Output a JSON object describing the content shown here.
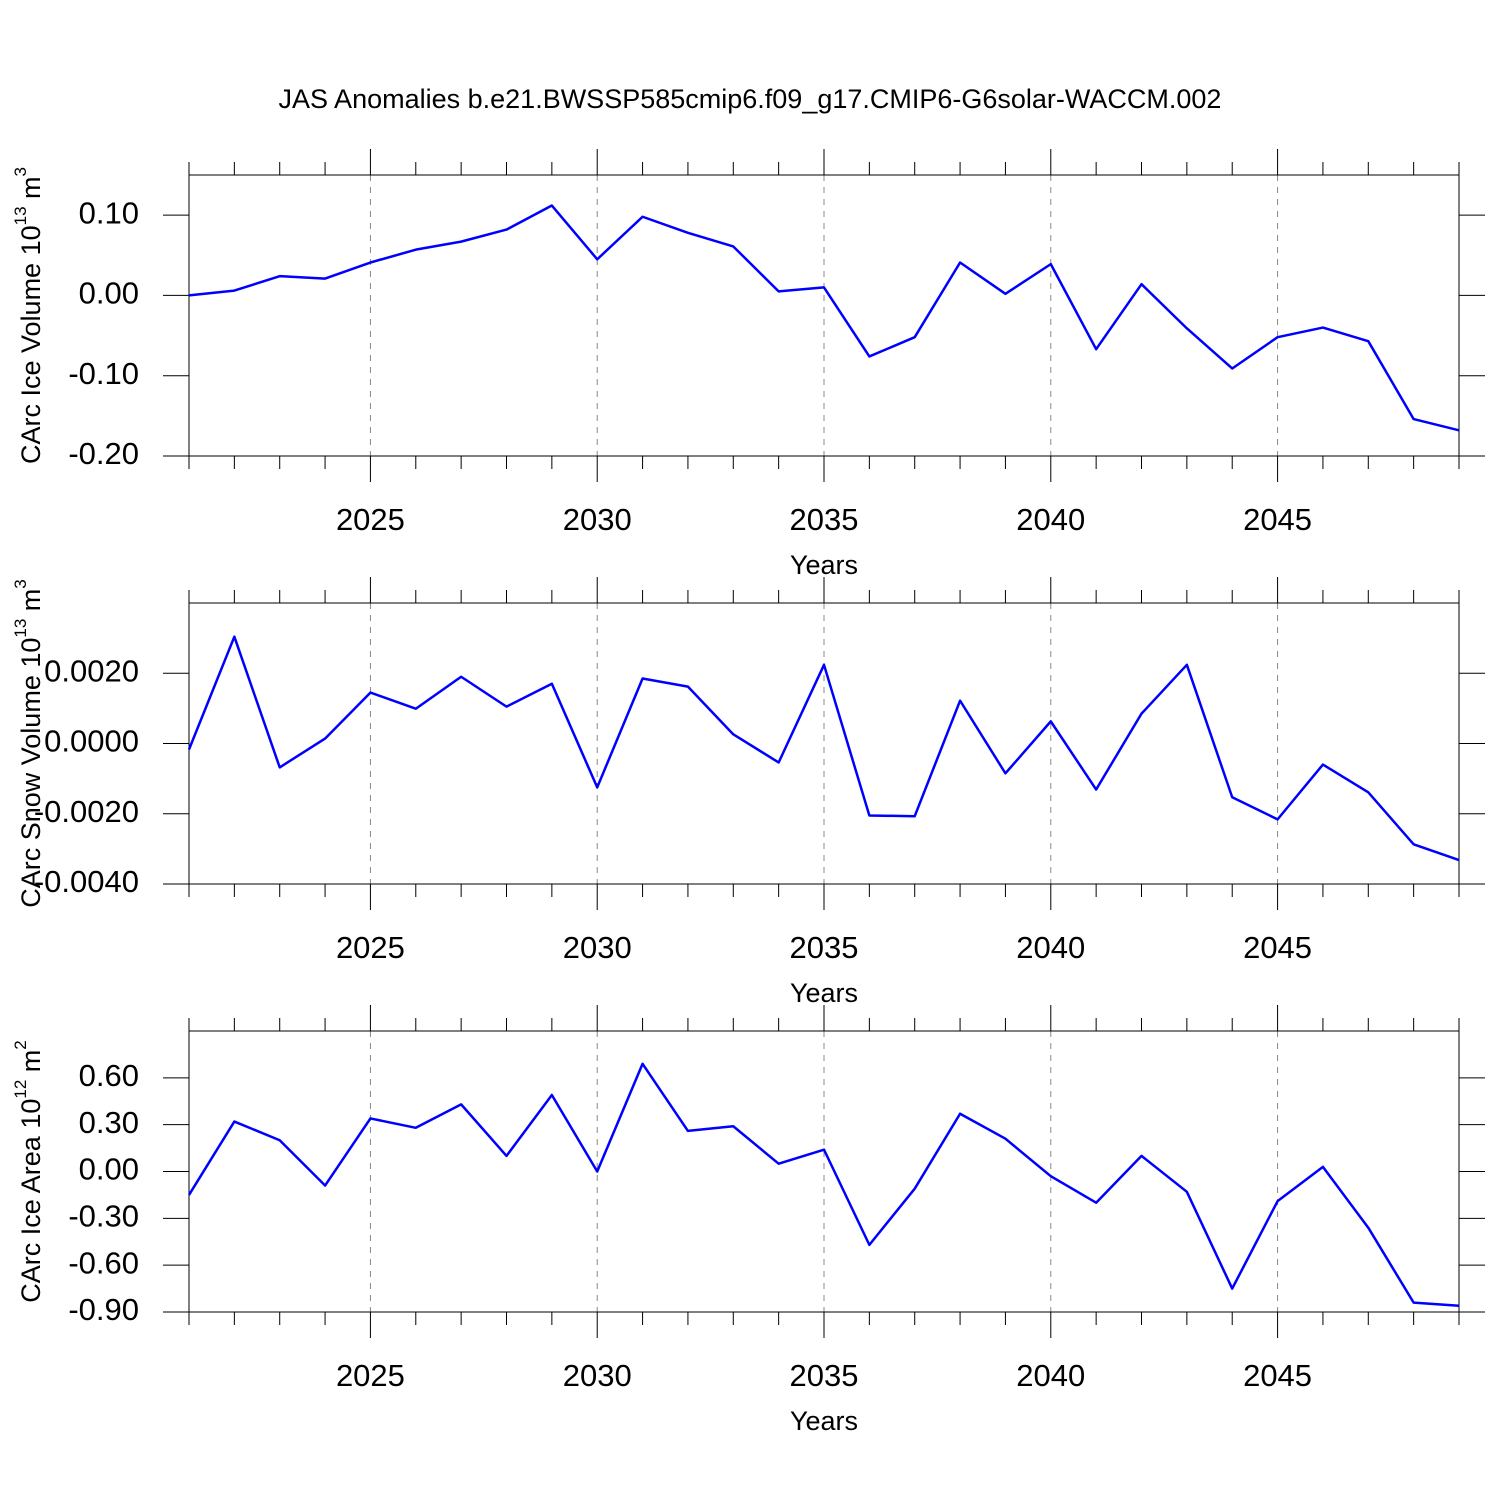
{
  "title": "JAS Anomalies b.e21.BWSSP585cmip6.f09_g17.CMIP6-G6solar-WACCM.002",
  "chart_data": [
    {
      "type": "line",
      "ylabel": [
        "CArc Ice Volume 10",
        "13",
        " m",
        "3"
      ],
      "xlabel": "Years",
      "x": [
        2021,
        2022,
        2023,
        2024,
        2025,
        2026,
        2027,
        2028,
        2029,
        2030,
        2031,
        2032,
        2033,
        2034,
        2035,
        2036,
        2037,
        2038,
        2039,
        2040,
        2041,
        2042,
        2043,
        2044,
        2045,
        2046,
        2047,
        2048,
        2049
      ],
      "series": [
        {
          "color": "#0000ff",
          "values": [
            0.0,
            0.006,
            0.024,
            0.021,
            0.041,
            0.057,
            0.067,
            0.082,
            0.112,
            0.045,
            0.098,
            0.078,
            0.061,
            0.005,
            0.01,
            -0.076,
            -0.052,
            0.041,
            0.002,
            0.039,
            -0.067,
            0.014,
            -0.041,
            -0.091,
            -0.052,
            -0.04,
            -0.057,
            -0.154,
            -0.168
          ]
        }
      ],
      "xlim": [
        2021,
        2049
      ],
      "xticks": [
        2025,
        2030,
        2035,
        2040,
        2045
      ],
      "xminorticks": [
        2021,
        2022,
        2023,
        2024,
        2026,
        2027,
        2028,
        2029,
        2031,
        2032,
        2033,
        2034,
        2036,
        2037,
        2038,
        2039,
        2041,
        2042,
        2043,
        2044,
        2046,
        2047,
        2048,
        2049
      ],
      "ylim": [
        -0.2,
        0.15
      ],
      "yticks": [
        {
          "value": 0.1,
          "label": "0.10"
        },
        {
          "value": 0,
          "label": "0.00"
        },
        {
          "value": -0.1,
          "label": "-0.10"
        },
        {
          "value": -0.2,
          "label": "-0.20"
        }
      ],
      "grid": true
    },
    {
      "type": "line",
      "ylabel": [
        "CArc Snow Volume 10",
        "13",
        " m",
        "3"
      ],
      "xlabel": "Years",
      "x": [
        2021,
        2022,
        2023,
        2024,
        2025,
        2026,
        2027,
        2028,
        2029,
        2030,
        2031,
        2032,
        2033,
        2034,
        2035,
        2036,
        2037,
        2038,
        2039,
        2040,
        2041,
        2042,
        2043,
        2044,
        2045,
        2046,
        2047,
        2048,
        2049
      ],
      "series": [
        {
          "color": "#0000ff",
          "values": [
            -0.00017,
            0.00304,
            -0.00068,
            0.00014,
            0.00145,
            0.00099,
            0.0019,
            0.00105,
            0.0017,
            -0.00125,
            0.00185,
            0.00162,
            0.00026,
            -0.00054,
            0.00224,
            -0.00205,
            -0.00207,
            0.00122,
            -0.00085,
            0.00063,
            -0.00131,
            0.00085,
            0.00224,
            -0.00153,
            -0.00216,
            -0.0006,
            -0.00139,
            -0.00287,
            -0.00332
          ]
        }
      ],
      "xlim": [
        2021,
        2049
      ],
      "xticks": [
        2025,
        2030,
        2035,
        2040,
        2045
      ],
      "xminorticks": [
        2021,
        2022,
        2023,
        2024,
        2026,
        2027,
        2028,
        2029,
        2031,
        2032,
        2033,
        2034,
        2036,
        2037,
        2038,
        2039,
        2041,
        2042,
        2043,
        2044,
        2046,
        2047,
        2048,
        2049
      ],
      "ylim": [
        -0.004,
        0.004
      ],
      "yticks": [
        {
          "value": 0.002,
          "label": "0.0020"
        },
        {
          "value": 0,
          "label": "0.0000"
        },
        {
          "value": -0.002,
          "label": "-0.0020"
        },
        {
          "value": -0.004,
          "label": "-0.0040"
        }
      ],
      "grid": true
    },
    {
      "type": "line",
      "ylabel": [
        "CArc Ice Area 10",
        "12",
        " m",
        "2"
      ],
      "xlabel": "Years",
      "x": [
        2021,
        2022,
        2023,
        2024,
        2025,
        2026,
        2027,
        2028,
        2029,
        2030,
        2031,
        2032,
        2033,
        2034,
        2035,
        2036,
        2037,
        2038,
        2039,
        2040,
        2041,
        2042,
        2043,
        2044,
        2045,
        2046,
        2047,
        2048,
        2049
      ],
      "series": [
        {
          "color": "#0000ff",
          "values": [
            -0.15,
            0.32,
            0.2,
            -0.09,
            0.34,
            0.28,
            0.43,
            0.1,
            0.49,
            0.0,
            0.69,
            0.26,
            0.29,
            0.05,
            0.14,
            -0.47,
            -0.11,
            0.37,
            0.21,
            -0.03,
            -0.2,
            0.1,
            -0.13,
            -0.75,
            -0.19,
            0.03,
            -0.36,
            -0.84,
            -0.86
          ]
        }
      ],
      "xlim": [
        2021,
        2049
      ],
      "xticks": [
        2025,
        2030,
        2035,
        2040,
        2045
      ],
      "xminorticks": [
        2021,
        2022,
        2023,
        2024,
        2026,
        2027,
        2028,
        2029,
        2031,
        2032,
        2033,
        2034,
        2036,
        2037,
        2038,
        2039,
        2041,
        2042,
        2043,
        2044,
        2046,
        2047,
        2048,
        2049
      ],
      "ylim": [
        -0.9,
        0.9
      ],
      "yticks": [
        {
          "value": 0.6,
          "label": "0.60"
        },
        {
          "value": 0.3,
          "label": "0.30"
        },
        {
          "value": 0,
          "label": "0.00"
        },
        {
          "value": -0.3,
          "label": "-0.30"
        },
        {
          "value": -0.6,
          "label": "-0.60"
        },
        {
          "value": -0.9,
          "label": "-0.90"
        }
      ],
      "grid": true
    }
  ]
}
